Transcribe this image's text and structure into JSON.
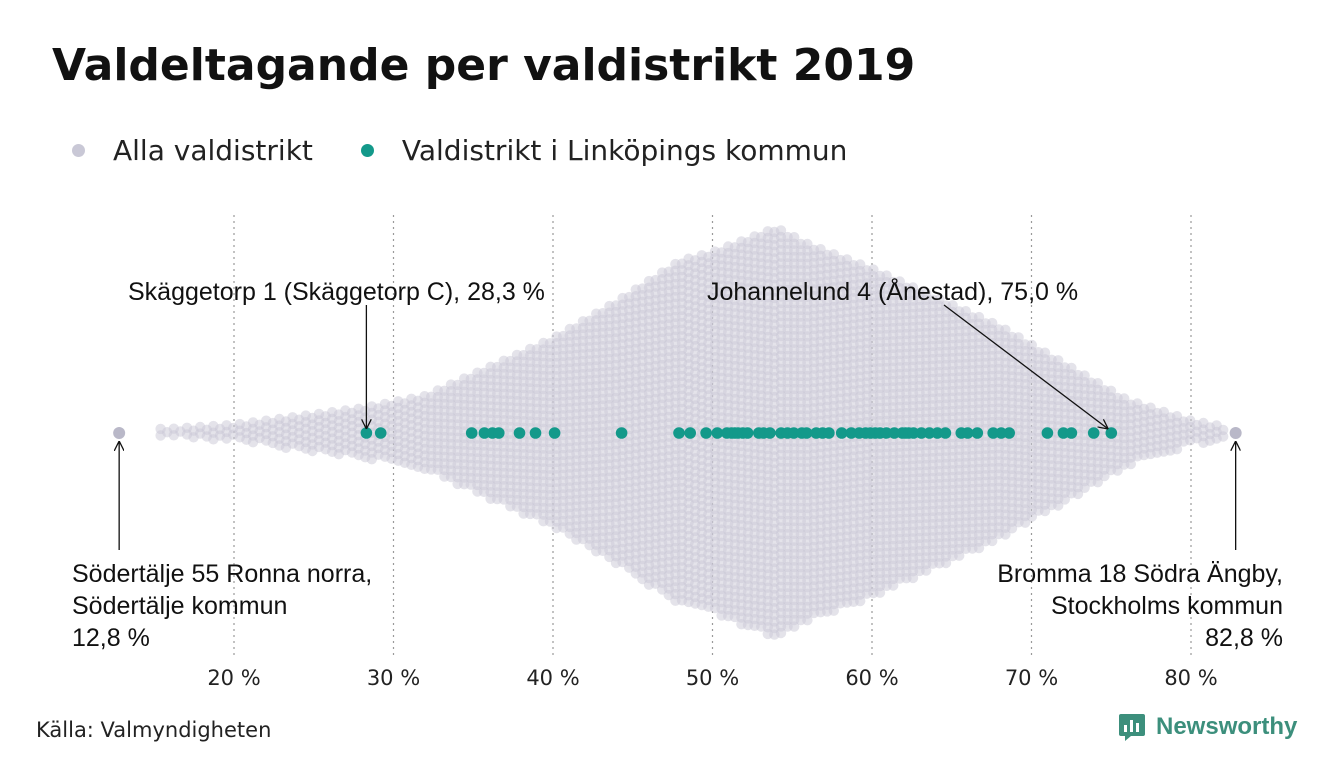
{
  "title": "Valdeltagande per valdistrikt 2019",
  "legend": {
    "all": {
      "label": "Alla valdistrikt",
      "color": "#c9c8d6"
    },
    "linkoping": {
      "label": "Valdistrikt i Linköpings kommun",
      "color": "#13998a"
    }
  },
  "source": "Källa: Valmyndigheten",
  "brand": {
    "name": "Newsworthy",
    "color": "#3c8f7c"
  },
  "chart_data": {
    "type": "scatter",
    "subtype": "beeswarm",
    "title": "Valdeltagande per valdistrikt 2019",
    "xlabel": "",
    "ylabel": "",
    "xlim": [
      9,
      88
    ],
    "x_ticks": [
      20,
      30,
      40,
      50,
      60,
      70,
      80
    ],
    "x_tick_labels": [
      "20 %",
      "30 %",
      "40 %",
      "50 %",
      "60 %",
      "70 %",
      "80 %"
    ],
    "grid": "vertical dotted",
    "legend_position": "top-left",
    "series": [
      {
        "name": "Alla valdistrikt",
        "color": "#c9c8d6",
        "x_min": 12.8,
        "x_max": 82.8,
        "x_mode": 53.8,
        "note_distribution_outline_pct": [
          [
            12.8,
            1
          ],
          [
            16,
            1
          ],
          [
            20,
            2
          ],
          [
            24,
            4
          ],
          [
            28,
            6
          ],
          [
            32,
            9
          ],
          [
            36,
            16
          ],
          [
            40,
            23
          ],
          [
            44,
            32
          ],
          [
            48,
            42
          ],
          [
            50,
            44
          ],
          [
            52,
            47
          ],
          [
            54,
            50
          ],
          [
            56,
            46
          ],
          [
            60,
            40
          ],
          [
            64,
            33
          ],
          [
            68,
            26
          ],
          [
            72,
            17
          ],
          [
            76,
            8
          ],
          [
            80,
            3
          ],
          [
            82.8,
            1
          ]
        ]
      },
      {
        "name": "Valdistrikt i Linköpings kommun",
        "color": "#13998a",
        "values": [
          28.3,
          29.2,
          34.9,
          35.7,
          36.2,
          36.6,
          37.9,
          38.9,
          40.1,
          44.3,
          47.9,
          48.6,
          49.6,
          50.3,
          50.9,
          51.2,
          51.4,
          51.6,
          51.9,
          52.2,
          52.9,
          53.2,
          53.6,
          54.3,
          54.7,
          55.1,
          55.6,
          55.9,
          56.5,
          56.9,
          57.3,
          58.1,
          58.7,
          59.2,
          59.6,
          59.9,
          60.2,
          60.5,
          60.9,
          61.4,
          61.9,
          62.1,
          62.3,
          62.6,
          63.1,
          63.6,
          64.1,
          64.6,
          65.6,
          66.0,
          66.6,
          67.6,
          68.1,
          68.6,
          71.0,
          72.0,
          72.5,
          73.9,
          75.0
        ]
      }
    ],
    "annotations": [
      {
        "lines": [
          "Skäggetorp 1 (Skäggetorp C), 28,3 %"
        ],
        "x": 28.3
      },
      {
        "lines": [
          "Johannelund 4 (Ånestad), 75,0 %"
        ],
        "x": 75.0
      },
      {
        "lines": [
          "Södertälje 55 Ronna norra,",
          "Södertälje kommun",
          "12,8 %"
        ],
        "x": 12.8
      },
      {
        "lines": [
          "Bromma 18 Södra Ängby,",
          "Stockholms kommun",
          "82,8 %"
        ],
        "x": 82.8
      }
    ]
  }
}
